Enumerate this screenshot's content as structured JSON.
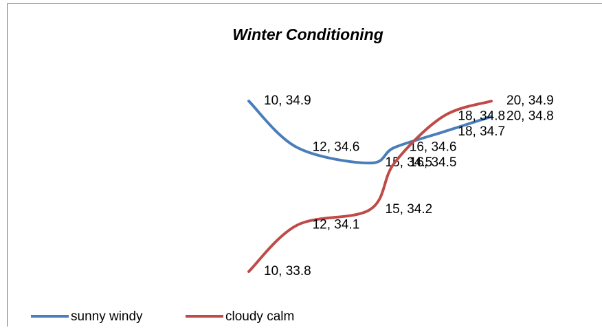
{
  "chart_data": {
    "type": "line",
    "title": "Winter Conditioning",
    "x": [
      10,
      12,
      15,
      16,
      18,
      20
    ],
    "smooth": true,
    "series": [
      {
        "name": "sunny windy",
        "color": "#4a7ebb",
        "values": [
          34.9,
          34.6,
          34.5,
          34.6,
          34.7,
          34.8
        ],
        "value_labels": [
          "10, 34.9",
          "12, 34.6",
          "15, 34.5",
          "16, 34.6",
          "18, 34.7",
          "20, 34.8"
        ]
      },
      {
        "name": "cloudy calm",
        "color": "#be4b48",
        "values": [
          33.8,
          34.1,
          34.2,
          34.5,
          34.8,
          34.9
        ],
        "value_labels": [
          "10, 33.8",
          "12, 34.1",
          "15, 34.2",
          "16, 34.5",
          "18, 34.8",
          "20, 34.9"
        ]
      }
    ],
    "legend": "bottom"
  }
}
